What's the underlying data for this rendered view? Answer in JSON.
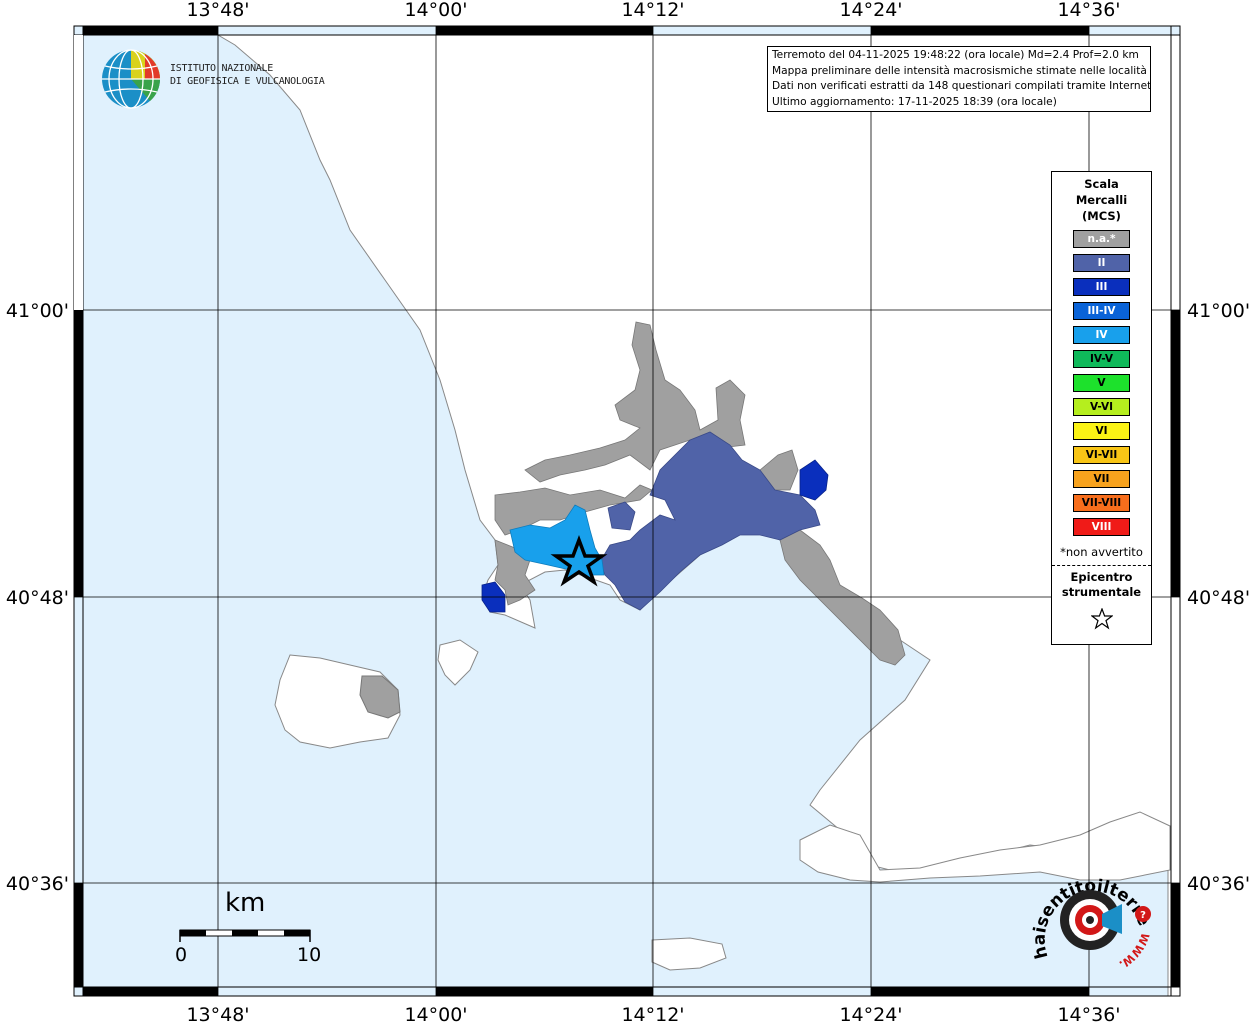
{
  "map": {
    "lon_ticks": [
      "13°48'",
      "14°00'",
      "14°12'",
      "14°24'",
      "14°36'"
    ],
    "lat_ticks": [
      "41°00'",
      "40°48'",
      "40°36'"
    ],
    "epicenter": {
      "lon": 14.1,
      "lat": 40.82
    }
  },
  "info": {
    "lines": [
      "Terremoto del 04-11-2025 19:48:22 (ora locale) Md=2.4 Prof=2.0 km",
      "Mappa preliminare delle intensità macrosismiche stimate nelle località",
      "Dati non verificati estratti da 148 questionari compilati tramite Internet.",
      "Ultimo aggiornamento: 17-11-2025 18:39 (ora locale)"
    ]
  },
  "logo": {
    "line1": "ISTITUTO NAZIONALE",
    "line2": "DI GEOFISICA E VULCANOLOGIA"
  },
  "legend": {
    "title_line1": "Scala",
    "title_line2": "Mercalli",
    "title_line3": "(MCS)",
    "items": [
      {
        "label": "n.a.*",
        "color": "#a0a0a0",
        "text_color": "#ffffff"
      },
      {
        "label": "II",
        "color": "#5063a8",
        "text_color": "#ffffff"
      },
      {
        "label": "III",
        "color": "#0a2fbd",
        "text_color": "#ffffff"
      },
      {
        "label": "III-IV",
        "color": "#0a63d8",
        "text_color": "#ffffff"
      },
      {
        "label": "IV",
        "color": "#18a0ec",
        "text_color": "#ffffff"
      },
      {
        "label": "IV-V",
        "color": "#0fb95a",
        "text_color": "#000000"
      },
      {
        "label": "V",
        "color": "#1de12c",
        "text_color": "#000000"
      },
      {
        "label": "V-VI",
        "color": "#b5ee1e",
        "text_color": "#000000"
      },
      {
        "label": "VI",
        "color": "#fbf315",
        "text_color": "#000000"
      },
      {
        "label": "VI-VII",
        "color": "#f8c516",
        "text_color": "#000000"
      },
      {
        "label": "VII",
        "color": "#f7a21d",
        "text_color": "#000000"
      },
      {
        "label": "VII-VIII",
        "color": "#f86e1c",
        "text_color": "#000000"
      },
      {
        "label": "VIII",
        "color": "#f01b18",
        "text_color": "#ffffff"
      }
    ],
    "na_note": "*non avvertito",
    "epi_line1": "Epicentro",
    "epi_line2": "strumentale"
  },
  "scale": {
    "unit": "km",
    "start": "0",
    "end": "10"
  },
  "site": {
    "text": "haisentitoilterremoto.it",
    "www": "WWW."
  }
}
